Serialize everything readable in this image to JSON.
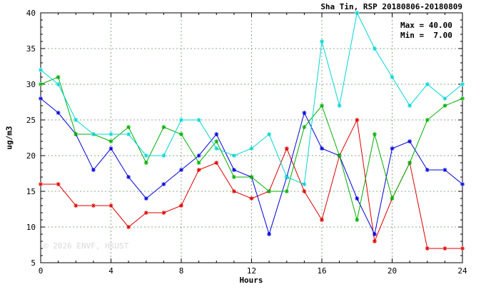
{
  "header": {
    "title": "Sha Tin, RSP 20180806-20180809"
  },
  "annotations": {
    "max_label": "Max = 40.00",
    "min_label": "Min =  7.00"
  },
  "watermark": "© 2026 ENVF, HKUST",
  "chart_data": {
    "type": "line",
    "title": "Sha Tin, RSP 20180806-20180809",
    "xlabel": "Hours",
    "ylabel": "ug/m3",
    "xlim": [
      0,
      24
    ],
    "ylim": [
      5,
      40
    ],
    "xticks": [
      0,
      4,
      8,
      12,
      16,
      20,
      24
    ],
    "yticks": [
      5,
      10,
      15,
      20,
      25,
      30,
      35,
      40
    ],
    "minor_x_step": 1,
    "minor_y_step": 1,
    "grid": true,
    "grid_color": "#8aa88a",
    "legend": "none",
    "marker": "asterisk",
    "max": 40.0,
    "min": 7.0,
    "x": [
      0,
      1,
      2,
      3,
      4,
      5,
      6,
      7,
      8,
      9,
      10,
      11,
      12,
      13,
      14,
      15,
      16,
      17,
      18,
      19,
      20,
      21,
      22,
      23,
      24
    ],
    "series": [
      {
        "name": "red",
        "color": "#dd0000",
        "values": [
          16,
          16,
          13,
          13,
          13,
          10,
          12,
          12,
          13,
          18,
          19,
          15,
          14,
          15,
          21,
          15,
          11,
          20,
          25,
          8,
          14,
          19,
          7,
          7,
          7
        ]
      },
      {
        "name": "blue",
        "color": "#0000dd",
        "values": [
          28,
          26,
          23,
          18,
          21,
          17,
          14,
          16,
          18,
          20,
          23,
          18,
          17,
          9,
          17,
          26,
          21,
          20,
          14,
          9,
          21,
          22,
          18,
          18,
          16
        ]
      },
      {
        "name": "green",
        "color": "#00b000",
        "values": [
          30,
          31,
          23,
          23,
          22,
          24,
          19,
          24,
          23,
          19,
          22,
          17,
          17,
          15,
          15,
          24,
          27,
          20,
          11,
          23,
          14,
          19,
          25,
          27,
          28
        ]
      },
      {
        "name": "cyan",
        "color": "#00d5d5",
        "values": [
          32,
          30,
          25,
          23,
          23,
          23,
          20,
          20,
          25,
          25,
          21,
          20,
          21,
          23,
          17,
          16,
          36,
          27,
          40,
          35,
          31,
          27,
          30,
          28,
          30
        ]
      }
    ]
  }
}
